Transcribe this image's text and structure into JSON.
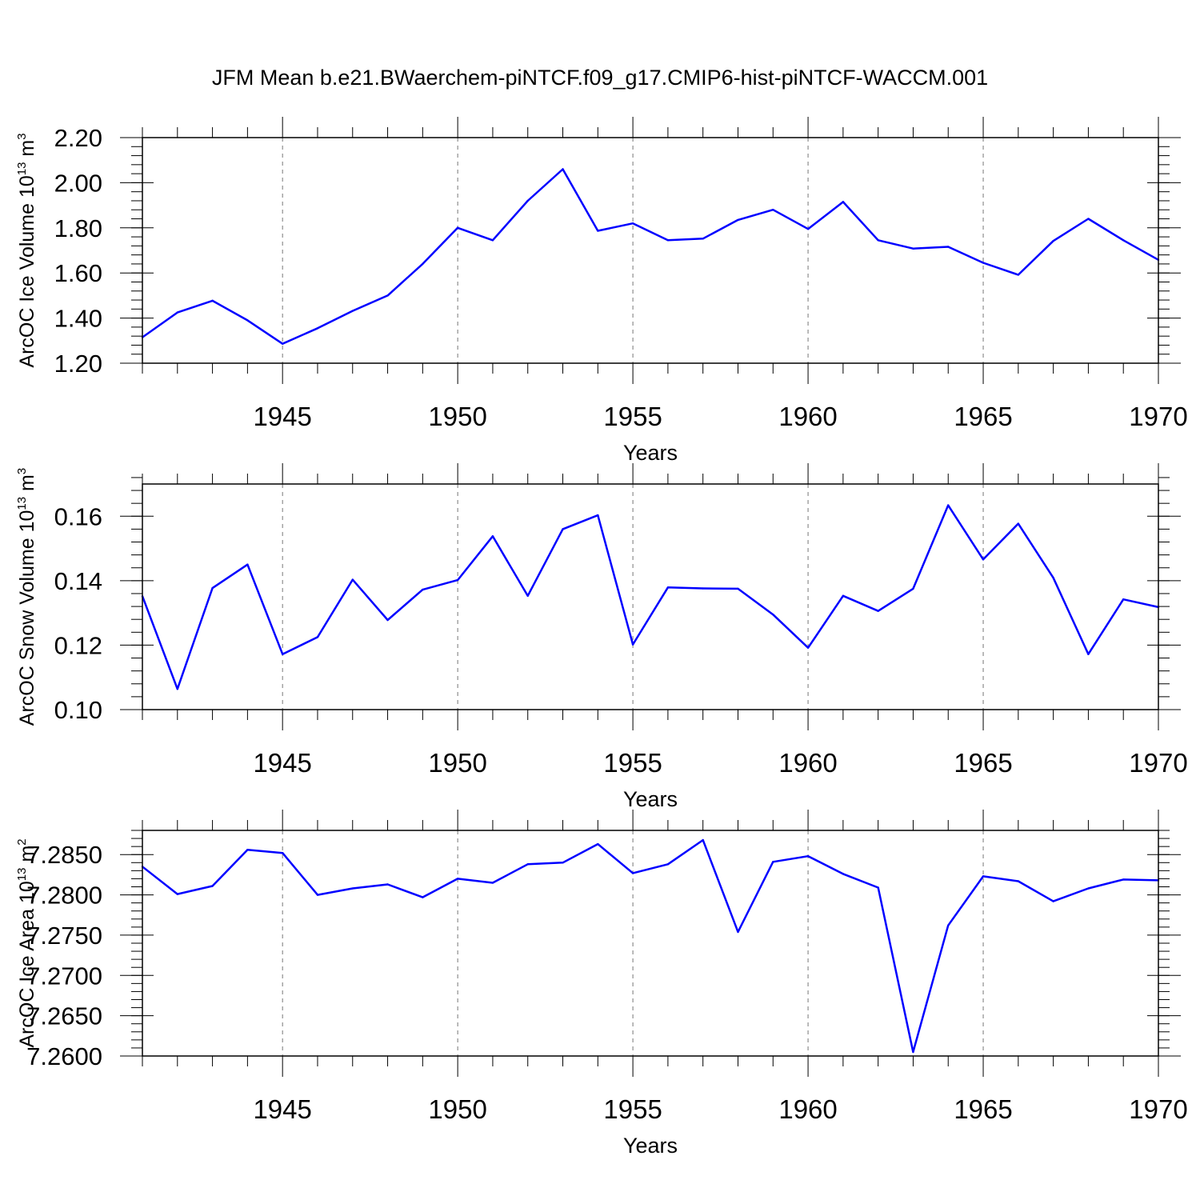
{
  "title": "JFM Mean b.e21.BWaerchem-piNTCF.f09_g17.CMIP6-hist-piNTCF-WACCM.001",
  "chart_data": [
    {
      "type": "line",
      "id": "ice-volume",
      "ylabel_main": "ArcOC Ice Volume 10",
      "ylabel_exp1": "13",
      "ylabel_unit": " m",
      "ylabel_exp2": "3",
      "xlabel": "Years",
      "xlim": [
        1941,
        1970
      ],
      "ylim": [
        1.2,
        2.2
      ],
      "xticks": [
        1945,
        1950,
        1955,
        1960,
        1965,
        1970
      ],
      "yticks": [
        1.2,
        1.4,
        1.6,
        1.8,
        2.0,
        2.2
      ],
      "ytick_labels": [
        "1.20",
        "1.40",
        "1.60",
        "1.80",
        "2.00",
        "2.20"
      ],
      "y_minor": 0.04,
      "grid": "vertical dashed at major x ticks",
      "line_color": "#0000ff",
      "x": [
        1941,
        1942,
        1943,
        1944,
        1945,
        1946,
        1947,
        1948,
        1949,
        1950,
        1951,
        1952,
        1953,
        1954,
        1955,
        1956,
        1957,
        1958,
        1959,
        1960,
        1961,
        1962,
        1963,
        1964,
        1965,
        1966,
        1967,
        1968,
        1969,
        1970
      ],
      "values": [
        1.315,
        1.425,
        1.477,
        1.39,
        1.286,
        1.355,
        1.432,
        1.5,
        1.64,
        1.8,
        1.745,
        1.92,
        2.06,
        1.787,
        1.82,
        1.745,
        1.752,
        1.835,
        1.88,
        1.795,
        1.915,
        1.745,
        1.708,
        1.716,
        1.645,
        1.592,
        1.742,
        1.84,
        1.745,
        1.658
      ]
    },
    {
      "type": "line",
      "id": "snow-volume",
      "ylabel_main": "ArcOC Snow Volume 10",
      "ylabel_exp1": "13",
      "ylabel_unit": " m",
      "ylabel_exp2": "3",
      "xlabel": "Years",
      "xlim": [
        1941,
        1970
      ],
      "ylim": [
        0.1,
        0.17
      ],
      "xticks": [
        1945,
        1950,
        1955,
        1960,
        1965,
        1970
      ],
      "yticks": [
        0.1,
        0.12,
        0.14,
        0.16
      ],
      "ytick_labels": [
        "0.10",
        "0.12",
        "0.14",
        "0.16"
      ],
      "y_minor": 0.004,
      "grid": "vertical dashed at major x ticks",
      "line_color": "#0000ff",
      "x": [
        1941,
        1942,
        1943,
        1944,
        1945,
        1946,
        1947,
        1948,
        1949,
        1950,
        1951,
        1952,
        1953,
        1954,
        1955,
        1956,
        1957,
        1958,
        1959,
        1960,
        1961,
        1962,
        1963,
        1964,
        1965,
        1966,
        1967,
        1968,
        1969,
        1970
      ],
      "values": [
        0.1352,
        0.1064,
        0.1377,
        0.145,
        0.1172,
        0.1225,
        0.1403,
        0.1278,
        0.1372,
        0.1402,
        0.1538,
        0.1353,
        0.156,
        0.1603,
        0.1202,
        0.1379,
        0.1376,
        0.1375,
        0.1295,
        0.1192,
        0.1353,
        0.1306,
        0.1375,
        0.1634,
        0.1466,
        0.1577,
        0.1409,
        0.1172,
        0.1342,
        0.1318
      ]
    },
    {
      "type": "line",
      "id": "ice-area",
      "ylabel_main": "ArcOC Ice Area 10",
      "ylabel_exp1": "13",
      "ylabel_unit": " m",
      "ylabel_exp2": "2",
      "xlabel": "Years",
      "xlim": [
        1941,
        1970
      ],
      "ylim": [
        7.26,
        7.288
      ],
      "xticks": [
        1945,
        1950,
        1955,
        1960,
        1965,
        1970
      ],
      "yticks": [
        7.26,
        7.265,
        7.27,
        7.275,
        7.28,
        7.285
      ],
      "ytick_labels": [
        "7.2600",
        "7.2650",
        "7.2700",
        "7.2750",
        "7.2800",
        "7.2850"
      ],
      "y_minor": 0.001,
      "grid": "vertical dashed at major x ticks",
      "line_color": "#0000ff",
      "x": [
        1941,
        1942,
        1943,
        1944,
        1945,
        1946,
        1947,
        1948,
        1949,
        1950,
        1951,
        1952,
        1953,
        1954,
        1955,
        1956,
        1957,
        1958,
        1959,
        1960,
        1961,
        1962,
        1963,
        1964,
        1965,
        1966,
        1967,
        1968,
        1969,
        1970
      ],
      "values": [
        7.2835,
        7.2801,
        7.2811,
        7.2856,
        7.2852,
        7.28,
        7.2808,
        7.2813,
        7.2797,
        7.282,
        7.2815,
        7.2838,
        7.284,
        7.2863,
        7.2827,
        7.2838,
        7.2868,
        7.2754,
        7.2841,
        7.2848,
        7.2826,
        7.2809,
        7.2605,
        7.2762,
        7.2823,
        7.2817,
        7.2792,
        7.2808,
        7.2819,
        7.2818
      ]
    }
  ]
}
